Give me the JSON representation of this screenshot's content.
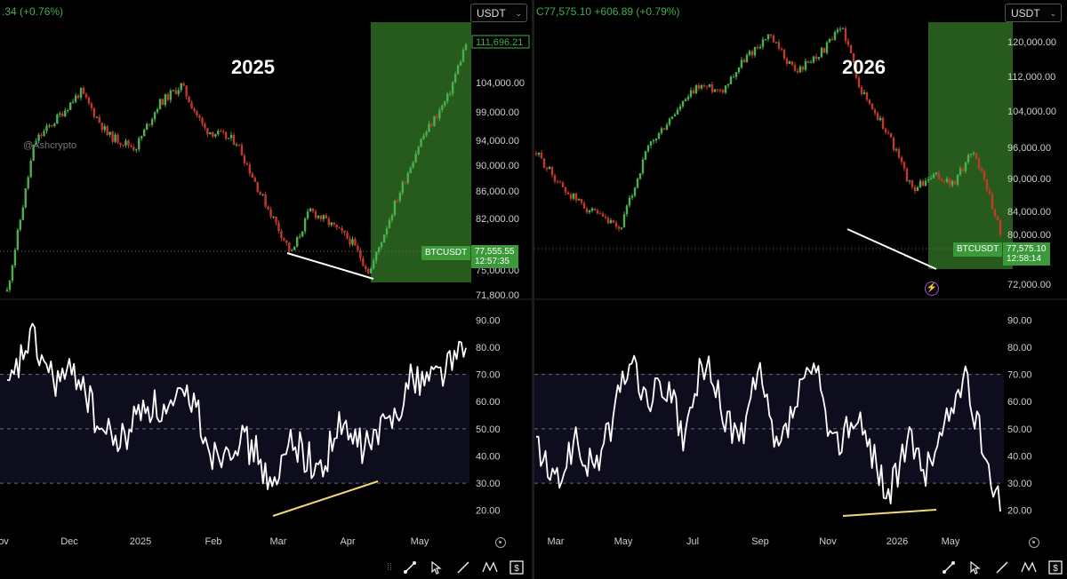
{
  "left": {
    "header": ".34 (+0.76%)",
    "currency": "USDT",
    "year_label": "2025",
    "watermark": "@Ashcrypto",
    "symbol_tag": "BTCUSDT",
    "last_price": "77,555.55",
    "countdown": "12:57:35",
    "high_tag": "111,696.21",
    "price_axis": [
      "104,000.00",
      "99,000.00",
      "94,000.00",
      "90,000.00",
      "86,000.00",
      "82,000.00",
      "75,000.00",
      "71,800.00"
    ],
    "rsi_axis": [
      "90.00",
      "80.00",
      "70.00",
      "60.00",
      "50.00",
      "40.00",
      "30.00",
      "20.00"
    ],
    "time_axis": [
      "ov",
      "Dec",
      "2025",
      "Feb",
      "Mar",
      "Apr",
      "May"
    ]
  },
  "right": {
    "header": "C77,575.10 +606.89 (+0.79%)",
    "currency": "USDT",
    "year_label": "2026",
    "symbol_tag": "BTCUSDT",
    "last_price": "77,575.10",
    "countdown": "12:58:14",
    "price_axis": [
      "120,000.00",
      "112,000.00",
      "104,000.00",
      "96,000.00",
      "90,000.00",
      "84,000.00",
      "80,000.00",
      "72,000.00"
    ],
    "rsi_axis": [
      "90.00",
      "80.00",
      "70.00",
      "60.00",
      "50.00",
      "40.00",
      "30.00",
      "20.00"
    ],
    "time_axis": [
      "Mar",
      "May",
      "Jul",
      "Sep",
      "Nov",
      "2026",
      "May"
    ]
  },
  "colors": {
    "up": "#22ab94",
    "down": "#f23645",
    "candle_up": "#4caf50",
    "candle_down": "#c0392b",
    "box": "#2e6b22",
    "rsi": "#ffffff",
    "trendline_price": "#ffffff",
    "trendline_rsi": "#f5d67a",
    "header": "#3fae4a"
  },
  "toolbar": {
    "icons": [
      "drag-handle-icon",
      "trend-line-icon",
      "cursor-icon",
      "line-icon",
      "pattern-icon",
      "price-range-icon"
    ]
  },
  "chart_data": [
    {
      "type": "candlestick",
      "title": "",
      "xlabel": "",
      "ylabel": "",
      "x_ticks": [
        "ov",
        "Dec",
        "2025",
        "Feb",
        "Mar",
        "Apr",
        "May"
      ],
      "ylim": [
        71000,
        113000
      ],
      "keypoints": [
        [
          0,
          72000
        ],
        [
          0.06,
          96000
        ],
        [
          0.1,
          99000
        ],
        [
          0.16,
          104000
        ],
        [
          0.22,
          97000
        ],
        [
          0.28,
          95000
        ],
        [
          0.33,
          102000
        ],
        [
          0.38,
          105000
        ],
        [
          0.43,
          98000
        ],
        [
          0.5,
          96000
        ],
        [
          0.55,
          88000
        ],
        [
          0.62,
          78000
        ],
        [
          0.66,
          85000
        ],
        [
          0.7,
          83000
        ],
        [
          0.75,
          80000
        ],
        [
          0.79,
          75000
        ],
        [
          0.84,
          85000
        ],
        [
          0.9,
          96000
        ],
        [
          0.96,
          103000
        ],
        [
          1,
          111696
        ]
      ],
      "rsi": {
        "ylim": [
          15,
          95
        ],
        "bands": [
          30,
          50,
          70
        ],
        "keypoints": [
          [
            0,
            62
          ],
          [
            0.05,
            84
          ],
          [
            0.1,
            68
          ],
          [
            0.16,
            70
          ],
          [
            0.2,
            50
          ],
          [
            0.25,
            45
          ],
          [
            0.3,
            60
          ],
          [
            0.35,
            55
          ],
          [
            0.4,
            63
          ],
          [
            0.45,
            40
          ],
          [
            0.5,
            47
          ],
          [
            0.55,
            40
          ],
          [
            0.58,
            25
          ],
          [
            0.62,
            48
          ],
          [
            0.68,
            33
          ],
          [
            0.72,
            50
          ],
          [
            0.78,
            43
          ],
          [
            0.83,
            52
          ],
          [
            0.88,
            68
          ],
          [
            0.93,
            70
          ],
          [
            1,
            79
          ]
        ]
      }
    },
    {
      "type": "candlestick",
      "title": "",
      "xlabel": "",
      "ylabel": "",
      "x_ticks": [
        "Mar",
        "May",
        "Jul",
        "Sep",
        "Nov",
        "2026",
        "May"
      ],
      "ylim": [
        70000,
        124000
      ],
      "keypoints": [
        [
          0,
          95000
        ],
        [
          0.06,
          87000
        ],
        [
          0.12,
          82000
        ],
        [
          0.18,
          78000
        ],
        [
          0.24,
          96000
        ],
        [
          0.3,
          104000
        ],
        [
          0.35,
          110000
        ],
        [
          0.4,
          109000
        ],
        [
          0.45,
          116000
        ],
        [
          0.5,
          121000
        ],
        [
          0.56,
          113000
        ],
        [
          0.62,
          118000
        ],
        [
          0.66,
          123000
        ],
        [
          0.7,
          109000
        ],
        [
          0.76,
          99000
        ],
        [
          0.81,
          87000
        ],
        [
          0.86,
          90000
        ],
        [
          0.9,
          88000
        ],
        [
          0.94,
          96000
        ],
        [
          0.97,
          88000
        ],
        [
          1,
          77575
        ]
      ],
      "rsi": {
        "ylim": [
          15,
          95
        ],
        "bands": [
          30,
          50,
          70
        ],
        "keypoints": [
          [
            0,
            45
          ],
          [
            0.04,
            28
          ],
          [
            0.08,
            45
          ],
          [
            0.12,
            35
          ],
          [
            0.16,
            50
          ],
          [
            0.2,
            76
          ],
          [
            0.24,
            60
          ],
          [
            0.28,
            66
          ],
          [
            0.32,
            45
          ],
          [
            0.36,
            76
          ],
          [
            0.4,
            57
          ],
          [
            0.44,
            45
          ],
          [
            0.48,
            70
          ],
          [
            0.52,
            40
          ],
          [
            0.56,
            60
          ],
          [
            0.6,
            73
          ],
          [
            0.64,
            42
          ],
          [
            0.68,
            55
          ],
          [
            0.72,
            44
          ],
          [
            0.76,
            25
          ],
          [
            0.8,
            45
          ],
          [
            0.84,
            35
          ],
          [
            0.88,
            50
          ],
          [
            0.92,
            70
          ],
          [
            0.96,
            45
          ],
          [
            1,
            24
          ]
        ]
      }
    }
  ]
}
